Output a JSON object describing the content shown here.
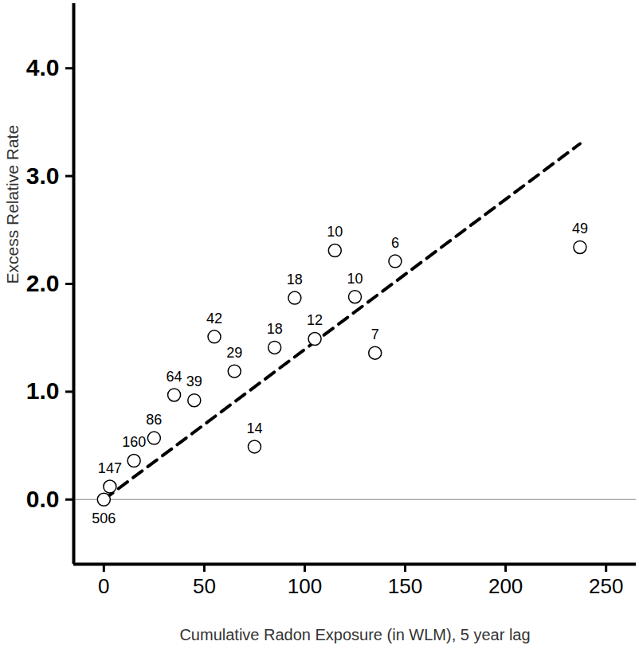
{
  "chart_data": {
    "type": "scatter",
    "x_label": "Cumulative Radon Exposure (in WLM), 5 year lag",
    "y_label": "Excess Relative Rate",
    "x": [
      0,
      3,
      15,
      25,
      35,
      45,
      55,
      65,
      75,
      85,
      95,
      105,
      115,
      125,
      135,
      145,
      237
    ],
    "values": [
      0,
      0.12,
      0.36,
      0.57,
      0.97,
      0.92,
      1.51,
      1.19,
      0.49,
      1.41,
      1.87,
      1.49,
      2.31,
      1.88,
      1.36,
      2.21,
      2.34
    ],
    "cases": [
      506,
      147,
      160,
      86,
      64,
      39,
      42,
      29,
      14,
      18,
      18,
      12,
      10,
      10,
      7,
      6,
      49
    ],
    "marker": "circle",
    "color": "#000000",
    "xlim": [
      -15,
      265
    ],
    "xticks": [
      0,
      50,
      100,
      150,
      200,
      250
    ],
    "ylim": [
      -0.6,
      4.6
    ],
    "yticks": [
      0,
      1,
      2,
      3,
      4
    ],
    "baseline": 0,
    "fit": {
      "x": [
        0,
        237
      ],
      "values": [
        0,
        3.3
      ],
      "line_style": "dashed",
      "color": "#000000"
    }
  }
}
